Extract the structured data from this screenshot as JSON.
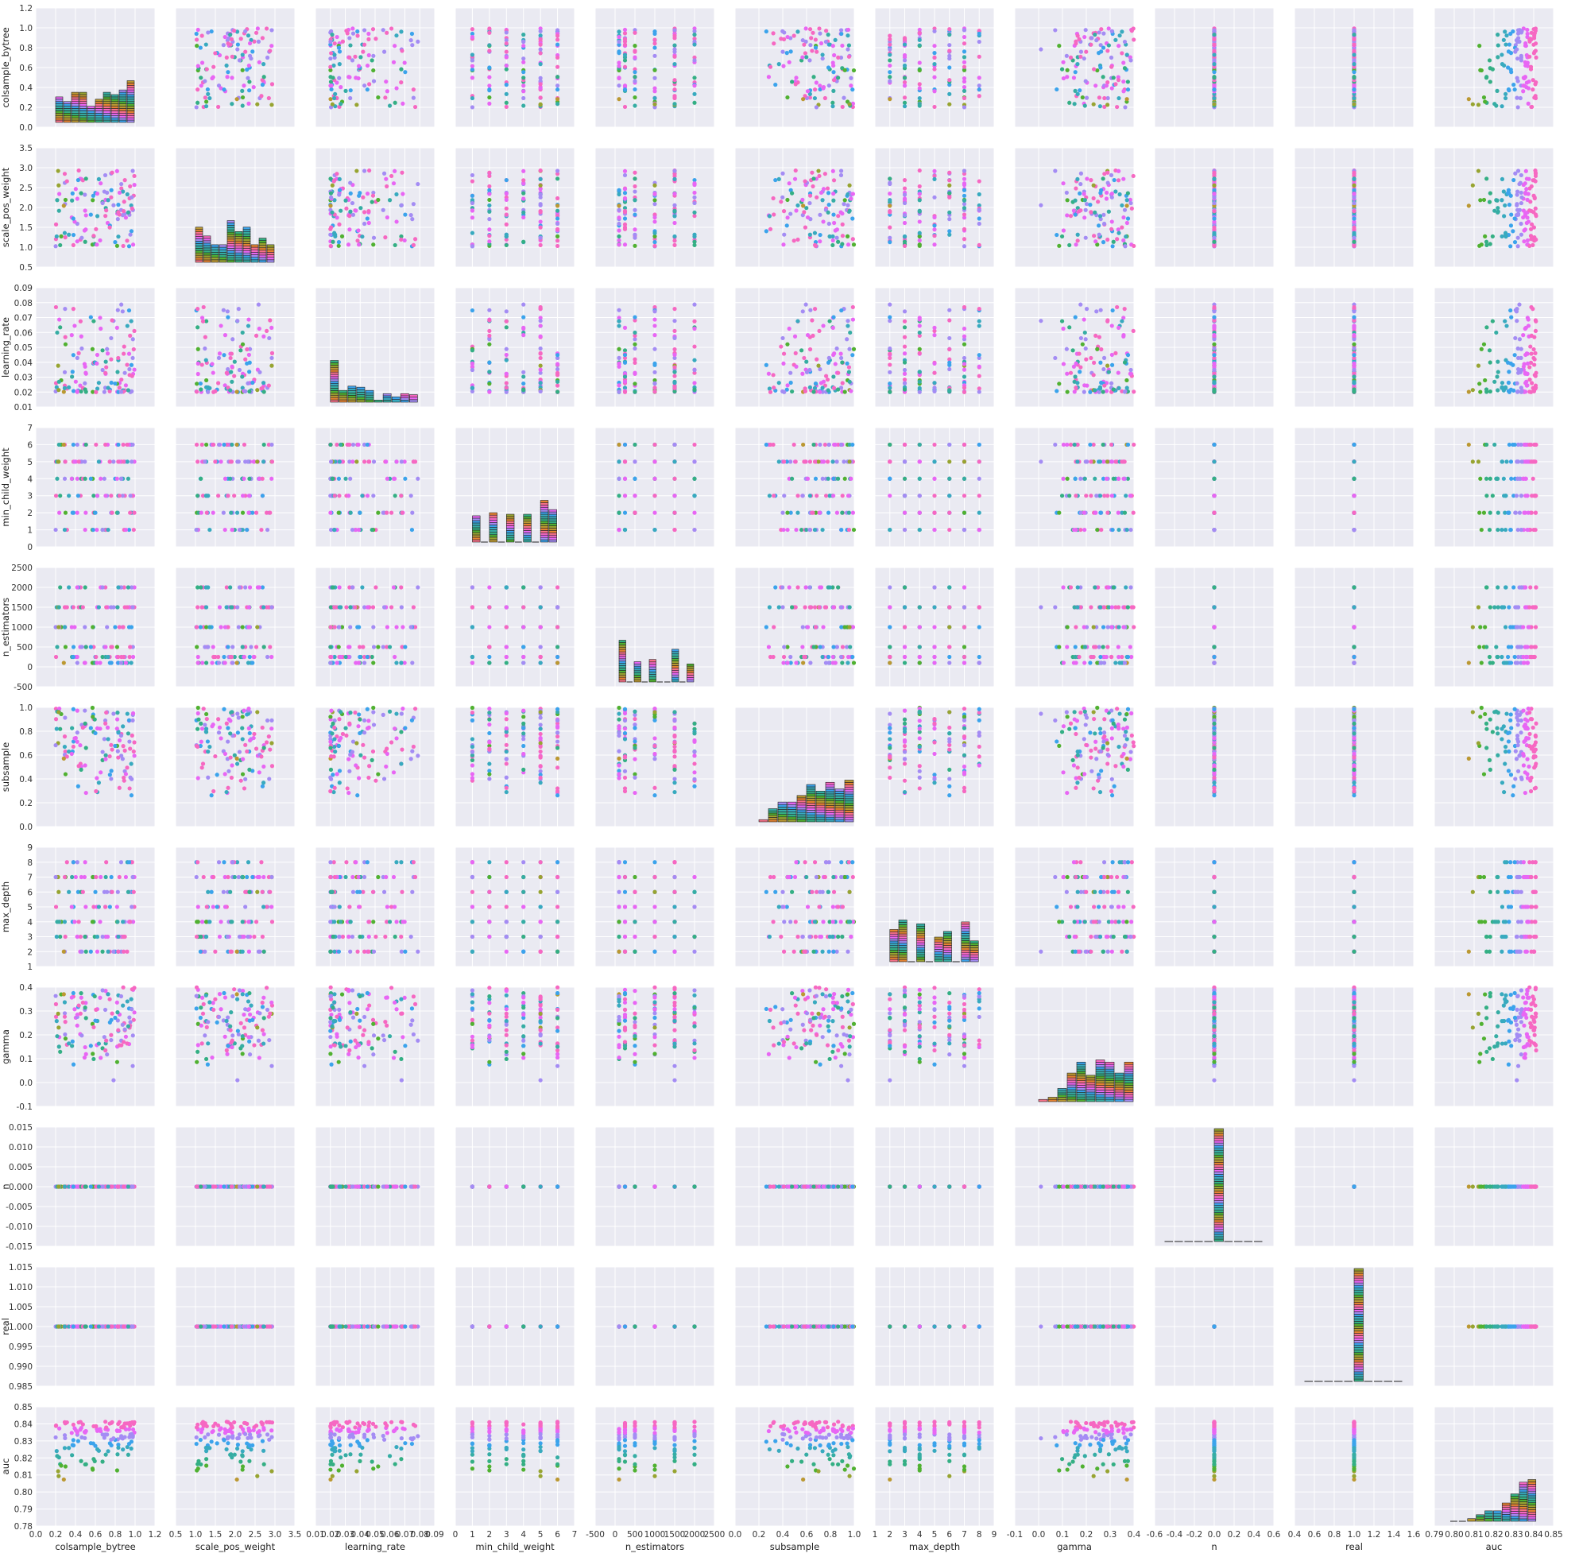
{
  "chart_data": {
    "type": "scatter",
    "variables": [
      {
        "name": "colsample_bytree",
        "range": [
          0.0,
          1.2
        ],
        "ticks": [
          "0.0",
          "0.2",
          "0.4",
          "0.6",
          "0.8",
          "1.0",
          "1.2"
        ],
        "kind": "continuous",
        "data_range": [
          0.2,
          1.0
        ]
      },
      {
        "name": "scale_pos_weight",
        "range": [
          0.5,
          3.5
        ],
        "ticks": [
          "0.5",
          "1.0",
          "1.5",
          "2.0",
          "2.5",
          "3.0",
          "3.5"
        ],
        "kind": "continuous",
        "data_range": [
          1.0,
          3.0
        ]
      },
      {
        "name": "learning_rate",
        "range": [
          0.01,
          0.09
        ],
        "ticks": [
          "0.01",
          "0.02",
          "0.03",
          "0.04",
          "0.05",
          "0.06",
          "0.07",
          "0.08",
          "0.09"
        ],
        "kind": "continuous",
        "data_range": [
          0.02,
          0.079
        ]
      },
      {
        "name": "min_child_weight",
        "range": [
          0,
          7
        ],
        "ticks": [
          "0",
          "1",
          "2",
          "3",
          "4",
          "5",
          "6",
          "7"
        ],
        "kind": "discrete",
        "levels": [
          1,
          2,
          3,
          4,
          5,
          6
        ]
      },
      {
        "name": "n_estimators",
        "range": [
          -500,
          2500
        ],
        "ticks": [
          "-500",
          "0",
          "500",
          "1000",
          "1500",
          "2000",
          "2500"
        ],
        "kind": "discrete",
        "levels": [
          100,
          250,
          500,
          1000,
          1500,
          2000
        ]
      },
      {
        "name": "subsample",
        "range": [
          0.0,
          1.0
        ],
        "ticks": [
          "0.0",
          "0.2",
          "0.4",
          "0.6",
          "0.8",
          "1.0"
        ],
        "kind": "continuous",
        "data_range": [
          0.2,
          1.0
        ]
      },
      {
        "name": "max_depth",
        "range": [
          1,
          9
        ],
        "ticks": [
          "1",
          "2",
          "3",
          "4",
          "5",
          "6",
          "7",
          "8",
          "9"
        ],
        "kind": "discrete",
        "levels": [
          2,
          3,
          4,
          5,
          6,
          7,
          8
        ]
      },
      {
        "name": "gamma",
        "range": [
          -0.1,
          0.4
        ],
        "ticks": [
          "-0.1",
          "0.0",
          "0.1",
          "0.2",
          "0.3",
          "0.4"
        ],
        "kind": "continuous",
        "data_range": [
          0.0,
          0.4
        ]
      },
      {
        "name": "n",
        "range": [
          -0.6,
          0.6
        ],
        "y_range": [
          -0.015,
          0.015
        ],
        "ticks": [
          "-0.6",
          "-0.4",
          "-0.2",
          "0.0",
          "0.2",
          "0.4",
          "0.6"
        ],
        "y_ticks": [
          "-0.015",
          "-0.010",
          "-0.005",
          "0.000",
          "0.005",
          "0.010",
          "0.015"
        ],
        "kind": "constant",
        "value": 0
      },
      {
        "name": "real",
        "range": [
          0.4,
          1.6
        ],
        "y_range": [
          0.985,
          1.015
        ],
        "ticks": [
          "0.4",
          "0.6",
          "0.8",
          "1.0",
          "1.2",
          "1.4",
          "1.6"
        ],
        "y_ticks": [
          "0.985",
          "0.990",
          "0.995",
          "1.000",
          "1.005",
          "1.010",
          "1.015"
        ],
        "kind": "constant",
        "value": 1
      },
      {
        "name": "auc",
        "range": [
          0.79,
          0.85
        ],
        "y_range": [
          0.78,
          0.85
        ],
        "ticks": [
          "0.79",
          "0.80",
          "0.81",
          "0.82",
          "0.83",
          "0.84",
          "0.85"
        ],
        "y_ticks": [
          "0.78",
          "0.79",
          "0.80",
          "0.81",
          "0.82",
          "0.83",
          "0.84",
          "0.85"
        ],
        "kind": "continuous",
        "data_range": [
          0.798,
          0.8415
        ]
      }
    ],
    "hue_palette": [
      "#f77189",
      "#e68332",
      "#bb9832",
      "#97a431",
      "#50b131",
      "#34af84",
      "#36ada4",
      "#38aabf",
      "#3ba3ec",
      "#a48cf4",
      "#e866f4",
      "#f668c2"
    ],
    "hue_variable": "auc",
    "n_points": 120,
    "diagonal": "histogram",
    "background": "#eaeaf2",
    "grid": true
  }
}
